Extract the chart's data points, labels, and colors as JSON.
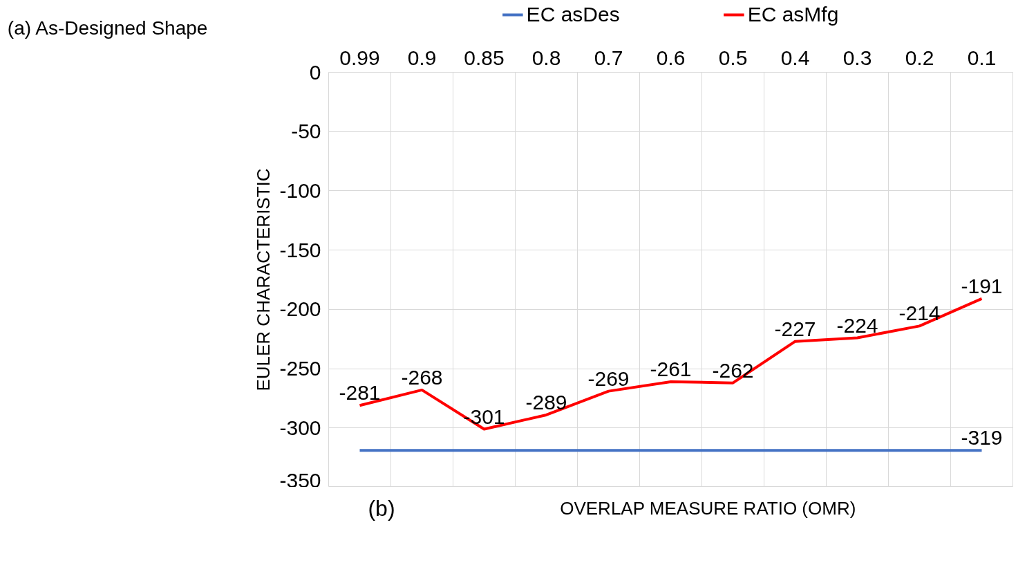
{
  "chart_data": {
    "type": "line",
    "categories": [
      "0.99",
      "0.9",
      "0.85",
      "0.8",
      "0.7",
      "0.6",
      "0.5",
      "0.4",
      "0.3",
      "0.2",
      "0.1"
    ],
    "series": [
      {
        "name": "EC asDes",
        "color": "#4472c4",
        "values": [
          -319,
          -319,
          -319,
          -319,
          -319,
          -319,
          -319,
          -319,
          -319,
          -319,
          -319
        ],
        "value_labels": [
          null,
          null,
          null,
          null,
          null,
          null,
          null,
          null,
          null,
          null,
          "-319"
        ]
      },
      {
        "name": "EC asMfg",
        "color": "#ff0000",
        "values": [
          -281,
          -268,
          -301,
          -289,
          -269,
          -261,
          -262,
          -227,
          -224,
          -214,
          -191
        ],
        "value_labels": [
          "-281",
          "-268",
          "-301",
          "-289",
          "-269",
          "-261",
          "-262",
          "-227",
          "-224",
          "-214",
          "-191"
        ]
      }
    ],
    "ylim": [
      -350,
      0
    ],
    "yticks": [
      -350,
      -300,
      -250,
      -200,
      -150,
      -100,
      -50,
      0
    ],
    "xlabel": "OVERLAP MEASURE RATIO (OMR)",
    "ylabel": "EULER CHARACTERISTIC",
    "annotations": [
      "(a)  As-Designed Shape",
      "(b)"
    ],
    "grid": true,
    "legend": "top",
    "line_style": "solid"
  }
}
